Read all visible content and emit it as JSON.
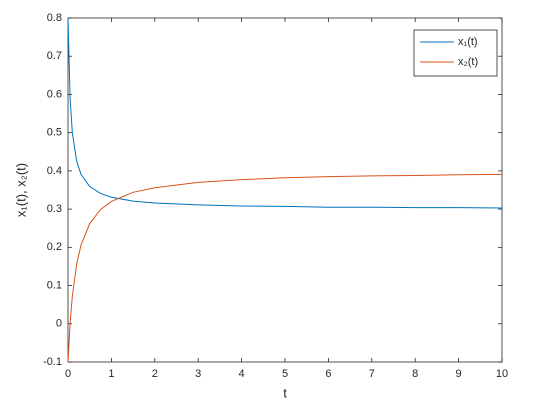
{
  "chart_data": {
    "type": "line",
    "x": [
      0,
      0.05,
      0.1,
      0.2,
      0.3,
      0.5,
      0.75,
      1,
      1.5,
      2,
      3,
      4,
      5,
      6,
      7,
      8,
      9,
      10
    ],
    "series": [
      {
        "name": "x₁(t)",
        "color": "#0072bd",
        "values": [
          0.8,
          0.586,
          0.5,
          0.425,
          0.391,
          0.359,
          0.341,
          0.331,
          0.321,
          0.316,
          0.311,
          0.308,
          0.307,
          0.305,
          0.305,
          0.304,
          0.304,
          0.303
        ]
      },
      {
        "name": "x₂(t)",
        "color": "#d95319",
        "values": [
          -0.1,
          0.004,
          0.072,
          0.156,
          0.206,
          0.262,
          0.299,
          0.32,
          0.344,
          0.356,
          0.37,
          0.377,
          0.382,
          0.385,
          0.387,
          0.388,
          0.39,
          0.391
        ]
      }
    ],
    "x_label": "t",
    "y_label": "x₁(t), x₂(t)",
    "xlim": [
      0,
      10
    ],
    "xticks": [
      0,
      1,
      2,
      3,
      4,
      5,
      6,
      7,
      8,
      9,
      10
    ],
    "ylim": [
      -0.1,
      0.8
    ],
    "yticks": [
      -0.1,
      0,
      0.1,
      0.2,
      0.3,
      0.4,
      0.5,
      0.6,
      0.7,
      0.8
    ],
    "grid": false,
    "legend": "top-right"
  }
}
